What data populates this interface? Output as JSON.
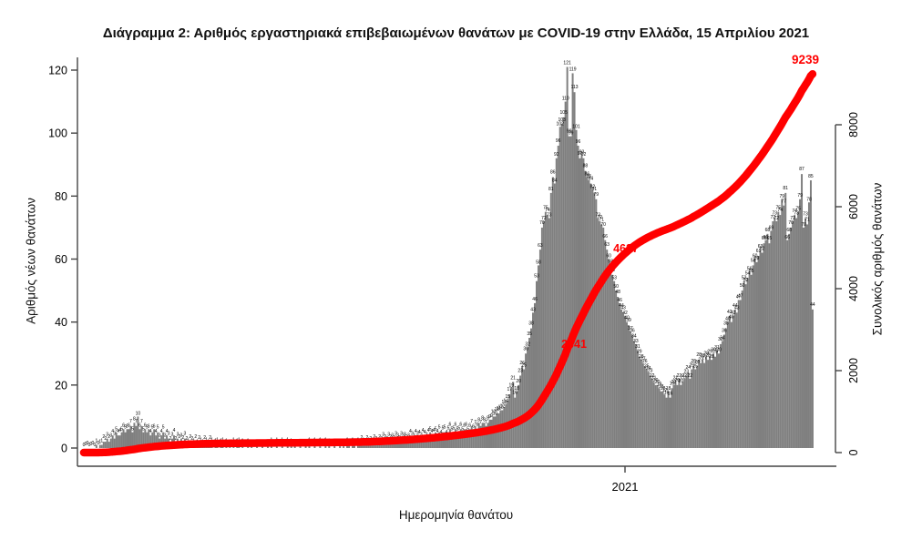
{
  "title": "Διάγραμμα 2: Αριθμός εργαστηριακά επιβεβαιωμένων θανάτων με COVID-19 στην Ελλάδα, 15 Απριλίου 2021",
  "axes": {
    "left": {
      "title": "Αριθμός νέων θανάτων",
      "ticks": [
        0,
        20,
        40,
        60,
        80,
        100,
        120
      ],
      "range": [
        0,
        120
      ]
    },
    "right": {
      "title": "Συνολικός αριθμός θανάτων",
      "ticks": [
        0,
        2000,
        4000,
        6000,
        8000
      ],
      "range": [
        0,
        8000
      ]
    },
    "x": {
      "title": "Ημερομηνία θανάτου",
      "tick_label": "2021"
    }
  },
  "annotations": {
    "final_total": "9239",
    "milestone_mid": "4627",
    "milestone_early": "2341"
  },
  "colors": {
    "bar": "#7f7f7f",
    "line": "#ff0000",
    "annotation": "#ff0000",
    "text": "#000000",
    "axis": "#444444"
  },
  "chart_data": {
    "type": "bar",
    "title": "Διάγραμμα 2: Αριθμός εργαστηριακά επιβεβαιωμένων θανάτων με COVID-19 στην Ελλάδα, 15 Απριλίου 2021",
    "xlabel": "Ημερομηνία θανάτου",
    "ylabel_left": "Αριθμός νέων θανάτων",
    "ylabel_right": "Συνολικός αριθμός θανάτων",
    "x_start_date": "2020-03-07",
    "x_end_date": "2021-04-15",
    "x_year_tick": "2021",
    "ylim_left": [
      0,
      120
    ],
    "ylim_right": [
      0,
      8000
    ],
    "bar_series_name": "daily_deaths",
    "line_series_name": "cumulative_deaths",
    "cumulative_final": 9239,
    "cumulative_milestones": [
      2341,
      4627,
      9239
    ],
    "daily_peak": 121,
    "values": [
      0,
      0,
      0,
      0,
      0,
      0,
      0,
      1,
      0,
      1,
      1,
      2,
      2,
      3,
      2,
      3,
      4,
      3,
      5,
      4,
      4,
      5,
      6,
      5,
      6,
      6,
      7,
      5,
      8,
      7,
      10,
      6,
      7,
      5,
      6,
      5,
      6,
      4,
      5,
      6,
      4,
      5,
      3,
      4,
      5,
      3,
      4,
      3,
      2,
      3,
      4,
      2,
      3,
      2,
      3,
      2,
      3,
      2,
      1,
      2,
      2,
      1,
      2,
      1,
      2,
      1,
      1,
      2,
      1,
      1,
      2,
      1,
      0,
      1,
      1,
      0,
      1,
      1,
      0,
      1,
      0,
      1,
      0,
      1,
      0,
      1,
      1,
      0,
      1,
      0,
      0,
      1,
      0,
      1,
      0,
      0,
      1,
      0,
      0,
      1,
      0,
      0,
      1,
      0,
      1,
      0,
      0,
      1,
      0,
      0,
      1,
      0,
      0,
      1,
      0,
      1,
      0,
      1,
      0,
      0,
      1,
      0,
      0,
      1,
      0,
      1,
      0,
      0,
      1,
      0,
      0,
      1,
      0,
      0,
      1,
      0,
      1,
      0,
      0,
      1,
      0,
      0,
      1,
      0,
      1,
      0,
      1,
      1,
      0,
      1,
      1,
      0,
      1,
      1,
      2,
      1,
      1,
      2,
      1,
      2,
      1,
      2,
      2,
      1,
      2,
      2,
      3,
      2,
      2,
      3,
      2,
      3,
      2,
      3,
      3,
      2,
      3,
      3,
      3,
      2,
      3,
      4,
      3,
      3,
      4,
      3,
      4,
      3,
      4,
      4,
      3,
      4,
      5,
      4,
      4,
      5,
      4,
      5,
      4,
      5,
      5,
      4,
      5,
      6,
      5,
      5,
      6,
      5,
      5,
      6,
      5,
      6,
      6,
      5,
      6,
      7,
      6,
      7,
      6,
      8,
      7,
      8,
      8,
      7,
      8,
      9,
      9,
      10,
      10,
      11,
      11,
      12,
      12,
      13,
      14,
      15,
      17,
      19,
      21,
      16,
      18,
      20,
      23,
      26,
      25,
      30,
      32,
      35,
      38,
      43,
      46,
      53,
      58,
      63,
      70,
      72,
      75,
      74,
      73,
      81,
      86,
      84,
      92,
      96,
      102,
      103,
      105,
      110,
      121,
      99,
      99,
      119,
      113,
      101,
      96,
      92,
      93,
      92,
      88,
      86,
      85,
      84,
      82,
      81,
      79,
      73,
      72,
      71,
      70,
      66,
      63,
      60,
      58,
      55,
      53,
      50,
      48,
      46,
      44,
      43,
      42,
      40,
      39,
      37,
      36,
      34,
      33,
      31,
      29,
      28,
      27,
      26,
      25,
      24,
      23,
      22,
      21,
      20,
      20,
      19,
      18,
      18,
      17,
      16,
      18,
      16,
      19,
      20,
      21,
      20,
      22,
      20,
      21,
      22,
      23,
      24,
      22,
      25,
      26,
      25,
      26,
      28,
      27,
      28,
      27,
      29,
      28,
      29,
      28,
      30,
      29,
      31,
      30,
      33,
      34,
      36,
      38,
      40,
      42,
      40,
      42,
      44,
      43,
      47,
      47,
      50,
      53,
      52,
      54,
      56,
      55,
      58,
      60,
      59,
      61,
      63,
      62,
      65,
      66,
      68,
      65,
      69,
      72,
      73,
      72,
      75,
      74,
      79,
      77,
      81,
      66,
      68,
      70,
      72,
      74,
      73,
      75,
      79,
      87,
      70,
      73,
      71,
      78,
      85,
      44
    ]
  },
  "layout_meta": {
    "note": "bars: grey daily deaths with tiny printed count labels; thick red curve: cumulative total on right axis"
  }
}
